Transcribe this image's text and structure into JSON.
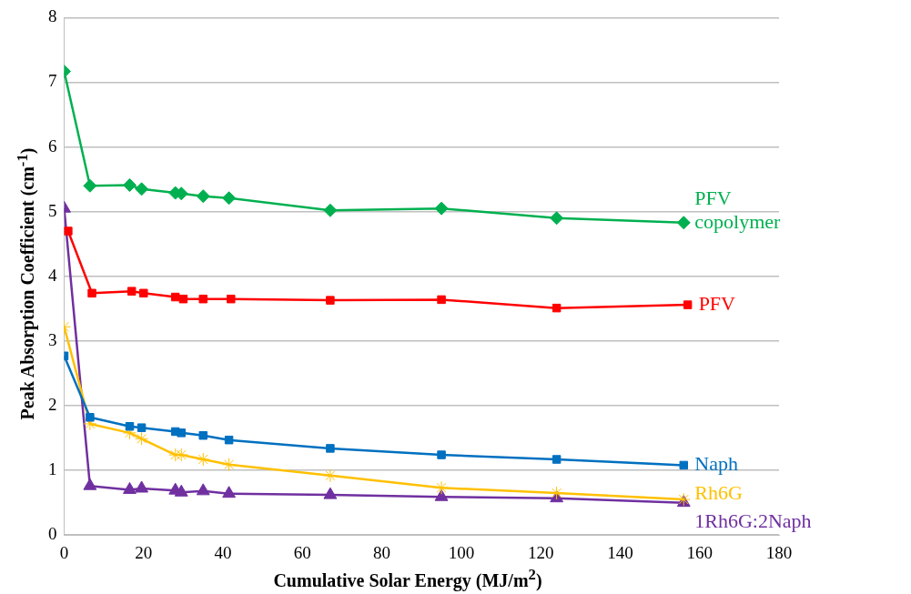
{
  "chart_data": {
    "type": "line",
    "xlabel": "Cumulative Solar Energy (MJ/m$^{2}$)",
    "ylabel": "Peak Absorption Coefficient (cm$^{-1}$)",
    "xlim": [
      0,
      180
    ],
    "xticks": [
      0,
      20,
      40,
      60,
      80,
      100,
      120,
      140,
      160,
      180
    ],
    "ylim": [
      0,
      8
    ],
    "yticks": [
      0,
      1,
      2,
      3,
      4,
      5,
      6,
      7,
      8
    ],
    "grid": "y",
    "legend": false,
    "series": [
      {
        "name": "PFV copolymer",
        "color": "#00b050",
        "marker": "diamond",
        "x": [
          0,
          6.5,
          16.5,
          19.5,
          28,
          29.5,
          35,
          41.5,
          67,
          95,
          124,
          156
        ],
        "values": [
          7.17,
          5.4,
          5.41,
          5.35,
          5.29,
          5.28,
          5.24,
          5.21,
          5.02,
          5.05,
          4.9,
          4.83
        ]
      },
      {
        "name": "PFV",
        "color": "#ff0000",
        "marker": "square",
        "x": [
          1,
          7,
          17,
          20,
          28,
          30,
          35,
          42,
          67,
          95,
          124,
          157
        ],
        "values": [
          4.7,
          3.74,
          3.77,
          3.74,
          3.68,
          3.65,
          3.65,
          3.65,
          3.63,
          3.64,
          3.51,
          3.56
        ]
      },
      {
        "name": "Naph",
        "color": "#0070c0",
        "marker": "square",
        "x": [
          0,
          6.5,
          16.5,
          19.5,
          28,
          29.5,
          35,
          41.5,
          67,
          95,
          124,
          156
        ],
        "values": [
          2.77,
          1.82,
          1.68,
          1.66,
          1.6,
          1.58,
          1.54,
          1.47,
          1.34,
          1.24,
          1.17,
          1.08
        ]
      },
      {
        "name": "Rh6G",
        "color": "#ffc000",
        "marker": "cross",
        "x": [
          0,
          6.5,
          16.5,
          19.5,
          28,
          29.5,
          35,
          41.5,
          67,
          95,
          124,
          156
        ],
        "values": [
          3.22,
          1.72,
          1.58,
          1.49,
          1.24,
          1.24,
          1.17,
          1.09,
          0.92,
          0.73,
          0.65,
          0.55
        ]
      },
      {
        "name": "1Rh6G:2Naph",
        "color": "#7030a0",
        "marker": "triangle",
        "x": [
          0,
          6.5,
          16.5,
          19.5,
          28,
          29.5,
          35,
          41.5,
          67,
          95,
          124,
          156
        ],
        "values": [
          5.05,
          0.76,
          0.7,
          0.72,
          0.69,
          0.66,
          0.68,
          0.64,
          0.62,
          0.59,
          0.57,
          0.5
        ]
      }
    ]
  }
}
